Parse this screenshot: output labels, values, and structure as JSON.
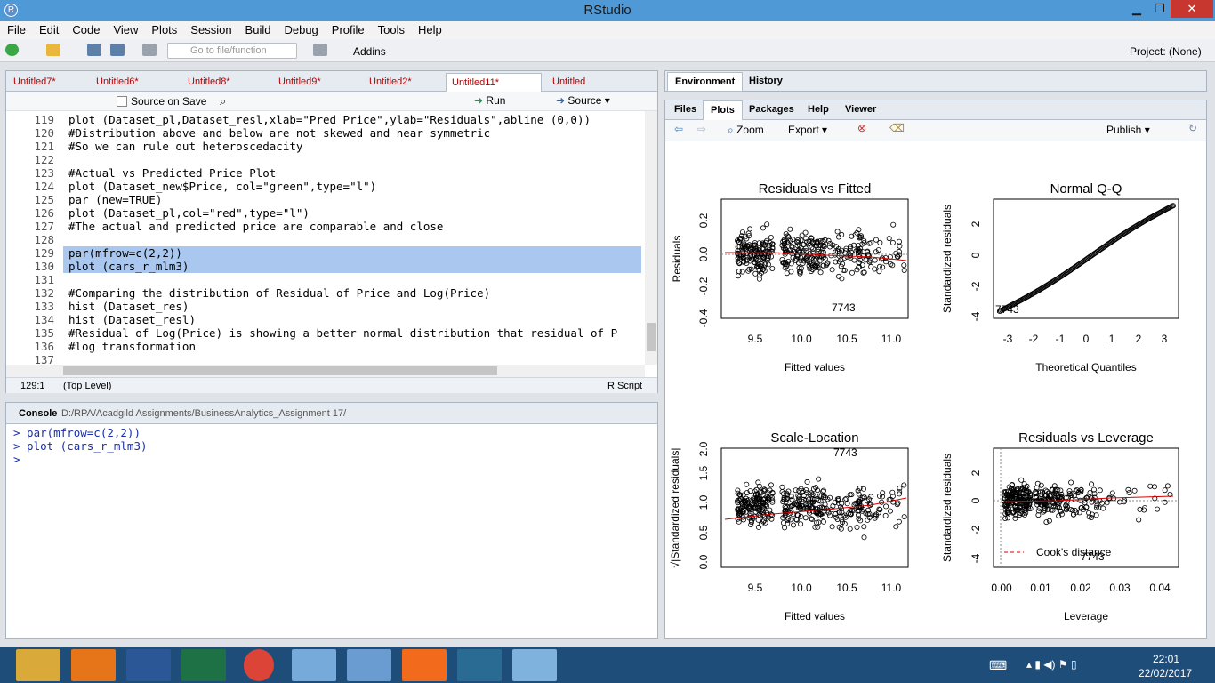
{
  "window": {
    "title": "RStudio"
  },
  "menu": [
    "File",
    "Edit",
    "Code",
    "View",
    "Plots",
    "Session",
    "Build",
    "Debug",
    "Profile",
    "Tools",
    "Help"
  ],
  "toolbar": {
    "goto_placeholder": "Go to file/function",
    "addins": "Addins",
    "project": "Project: (None)"
  },
  "editor": {
    "tabs": [
      "Untitled7*",
      "Untitled6*",
      "Untitled8*",
      "Untitled9*",
      "Untitled2*",
      "Untitled11*",
      "Untitled"
    ],
    "active_tab": "Untitled11*",
    "source_on_save": "Source on Save",
    "run": "Run",
    "source": "Source",
    "lines": [
      {
        "n": "119",
        "t": "plot (Dataset_pl,Dataset_resl,xlab=\"Pred Price\",ylab=\"Residuals\",abline (0,0))"
      },
      {
        "n": "120",
        "t": "#Distribution above and below are not skewed and near symmetric"
      },
      {
        "n": "121",
        "t": "#So we can rule out heteroscedacity"
      },
      {
        "n": "122",
        "t": ""
      },
      {
        "n": "123",
        "t": "#Actual vs Predicted Price Plot"
      },
      {
        "n": "124",
        "t": "plot (Dataset_new$Price, col=\"green\",type=\"l\")"
      },
      {
        "n": "125",
        "t": "par (new=TRUE)"
      },
      {
        "n": "126",
        "t": "plot (Dataset_pl,col=\"red\",type=\"l\")"
      },
      {
        "n": "127",
        "t": "#The actual and predicted price are comparable and close"
      },
      {
        "n": "128",
        "t": ""
      },
      {
        "n": "129",
        "t": "par(mfrow=c(2,2))"
      },
      {
        "n": "130",
        "t": "plot (cars_r_mlm3)"
      },
      {
        "n": "131",
        "t": ""
      },
      {
        "n": "132",
        "t": "#Comparing the distribution of Residual of Price and Log(Price)"
      },
      {
        "n": "133",
        "t": "hist (Dataset_res)"
      },
      {
        "n": "134",
        "t": "hist (Dataset_resl)"
      },
      {
        "n": "135",
        "t": "#Residual of Log(Price) is showing a better normal distribution that residual of P"
      },
      {
        "n": "136",
        "t": "#log transformation"
      },
      {
        "n": "137",
        "t": ""
      }
    ],
    "status_pos": "129:1",
    "status_scope": "(Top Level)",
    "status_type": "R Script"
  },
  "console": {
    "title": "Console",
    "path": "D:/RPA/Acadgild Assignments/BusinessAnalytics_Assignment 17/",
    "lines": [
      "> par(mfrow=c(2,2))",
      "> plot (cars_r_mlm3)",
      ">"
    ]
  },
  "env_tabs": [
    "Environment",
    "History"
  ],
  "files_tabs": [
    "Files",
    "Plots",
    "Packages",
    "Help",
    "Viewer"
  ],
  "plots_toolbar": {
    "zoom": "Zoom",
    "export": "Export",
    "publish": "Publish"
  },
  "plots": {
    "p1": {
      "title": "Residuals vs Fitted",
      "xlabel": "Fitted values",
      "ylabel": "Residuals",
      "xticks": [
        "9.5",
        "10.0",
        "10.5",
        "11.0"
      ],
      "yticks": [
        "-0.4",
        "-0.2",
        "0.0",
        "0.2"
      ],
      "label": "7743"
    },
    "p2": {
      "title": "Normal Q-Q",
      "xlabel": "Theoretical Quantiles",
      "ylabel": "Standardized residuals",
      "xticks": [
        "-3",
        "-2",
        "-1",
        "0",
        "1",
        "2",
        "3"
      ],
      "yticks": [
        "-4",
        "-2",
        "0",
        "2"
      ],
      "label": "7743"
    },
    "p3": {
      "title": "Scale-Location",
      "xlabel": "Fitted values",
      "ylabel": "√|Standardized residuals|",
      "xticks": [
        "9.5",
        "10.0",
        "10.5",
        "11.0"
      ],
      "yticks": [
        "0.0",
        "0.5",
        "1.0",
        "1.5",
        "2.0"
      ],
      "label": "7743"
    },
    "p4": {
      "title": "Residuals vs Leverage",
      "xlabel": "Leverage",
      "ylabel": "Standardized residuals",
      "xticks": [
        "0.00",
        "0.01",
        "0.02",
        "0.03",
        "0.04"
      ],
      "yticks": [
        "-4",
        "-2",
        "0",
        "2"
      ],
      "legend": "Cook's distance",
      "label": "7743"
    }
  },
  "taskbar": {
    "time": "22:01",
    "date": "22/02/2017"
  },
  "colors": {
    "accent": "#4f9ad6",
    "taskbar": "#1f4d7a",
    "highlight": "#a9c7ef",
    "comment": "#3b8a3b",
    "red": "#d40000"
  }
}
